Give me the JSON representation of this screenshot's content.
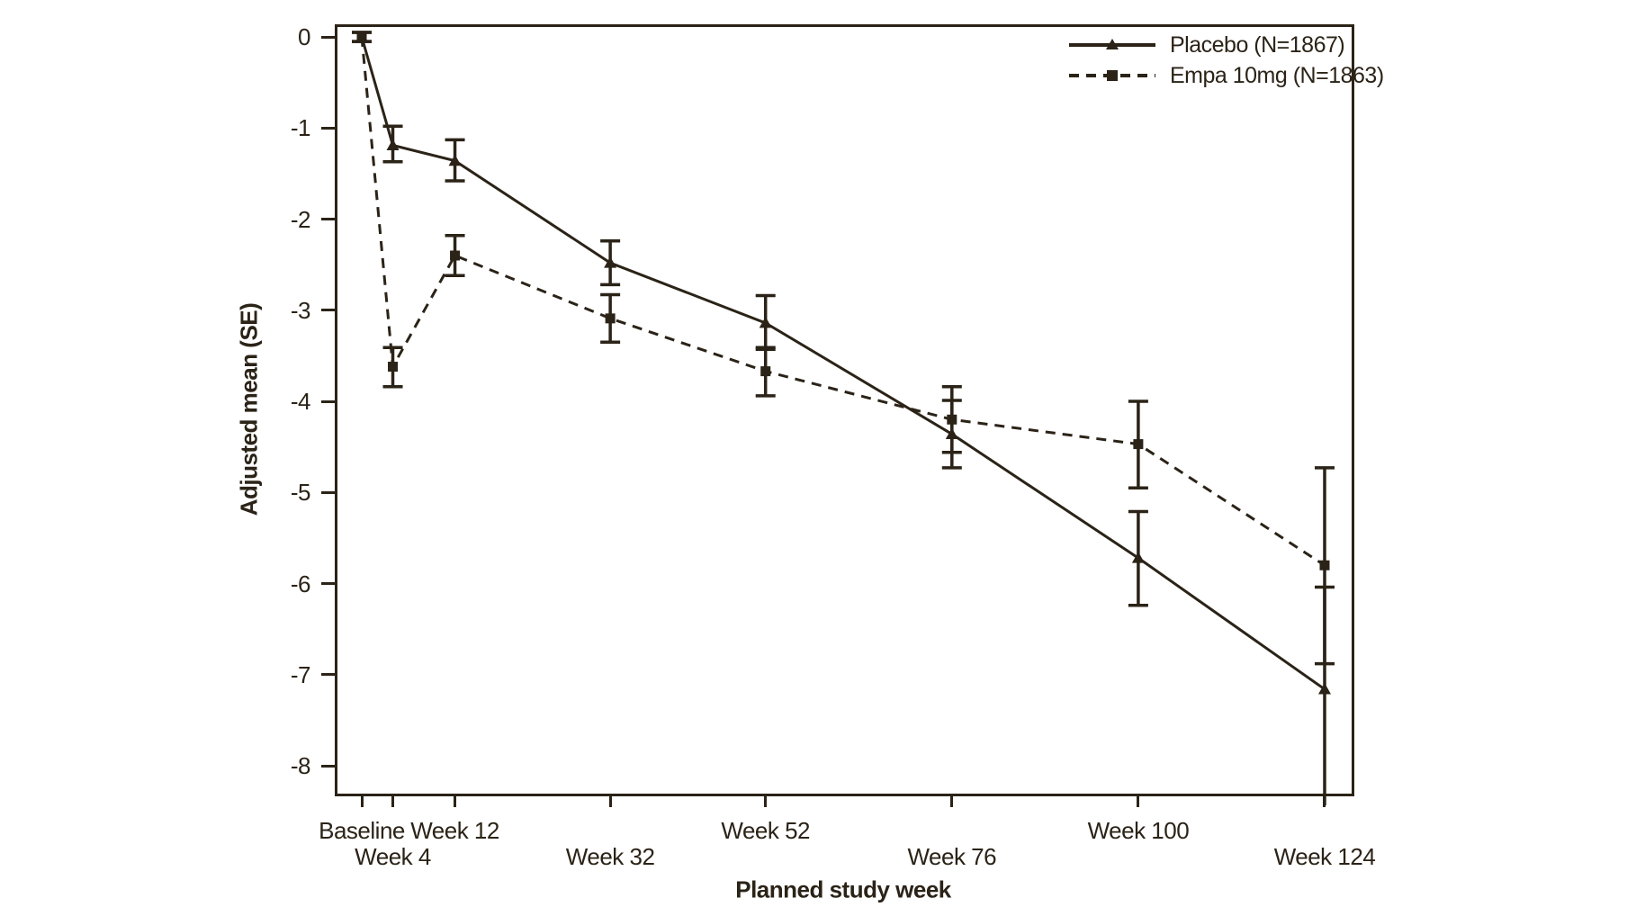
{
  "chart_data": {
    "type": "line",
    "title": "",
    "xlabel": "Planned study week",
    "ylabel": "Adjusted mean (SE)",
    "ylim": [
      -8.4,
      0.15
    ],
    "yticks": [
      0,
      -1,
      -2,
      -3,
      -4,
      -5,
      -6,
      -7,
      -8
    ],
    "grid": false,
    "legend_position": "top-right-inside",
    "colors": {
      "ink": "#2b2317",
      "background": "#ffffff"
    },
    "error_bars": "SE",
    "xticks": [
      {
        "week": 0,
        "label": "Baseline",
        "row": 1
      },
      {
        "week": 4,
        "label": "Week 4",
        "row": 2
      },
      {
        "week": 12,
        "label": "Week 12",
        "row": 1
      },
      {
        "week": 32,
        "label": "Week 32",
        "row": 2
      },
      {
        "week": 52,
        "label": "Week 52",
        "row": 1
      },
      {
        "week": 76,
        "label": "Week 76",
        "row": 2
      },
      {
        "week": 100,
        "label": "Week 100",
        "row": 1
      },
      {
        "week": 124,
        "label": "Week 124",
        "row": 2
      }
    ],
    "series": [
      {
        "name": "Placebo (N=1867)",
        "line": "solid",
        "marker": "triangle",
        "points": [
          {
            "week": 0,
            "mean": 0,
            "upper": 0.05,
            "lower": -0.05
          },
          {
            "week": 4,
            "mean": -1.19,
            "upper": -0.98,
            "lower": -1.37
          },
          {
            "week": 12,
            "mean": -1.36,
            "upper": -1.13,
            "lower": -1.58
          },
          {
            "week": 32,
            "mean": -2.48,
            "upper": -2.24,
            "lower": -2.72
          },
          {
            "week": 52,
            "mean": -3.14,
            "upper": -2.84,
            "lower": -3.43
          },
          {
            "week": 76,
            "mean": -4.36,
            "upper": -3.99,
            "lower": -4.73
          },
          {
            "week": 100,
            "mean": -5.72,
            "upper": -5.21,
            "lower": -6.24
          },
          {
            "week": 124,
            "mean": -7.16,
            "upper": -6.04,
            "lower": -8.28,
            "lower_clipped": true
          }
        ]
      },
      {
        "name": "Empa 10mg (N=1863)",
        "line": "dashed",
        "marker": "square",
        "points": [
          {
            "week": 0,
            "mean": 0,
            "upper": 0.05,
            "lower": -0.05
          },
          {
            "week": 4,
            "mean": -3.62,
            "upper": -3.41,
            "lower": -3.84
          },
          {
            "week": 12,
            "mean": -2.4,
            "upper": -2.18,
            "lower": -2.62
          },
          {
            "week": 32,
            "mean": -3.09,
            "upper": -2.83,
            "lower": -3.35
          },
          {
            "week": 52,
            "mean": -3.67,
            "upper": -3.41,
            "lower": -3.94
          },
          {
            "week": 76,
            "mean": -4.2,
            "upper": -3.84,
            "lower": -4.56
          },
          {
            "week": 100,
            "mean": -4.47,
            "upper": -4.0,
            "lower": -4.95
          },
          {
            "week": 124,
            "mean": -5.8,
            "upper": -4.73,
            "lower": -6.88
          }
        ]
      }
    ]
  }
}
